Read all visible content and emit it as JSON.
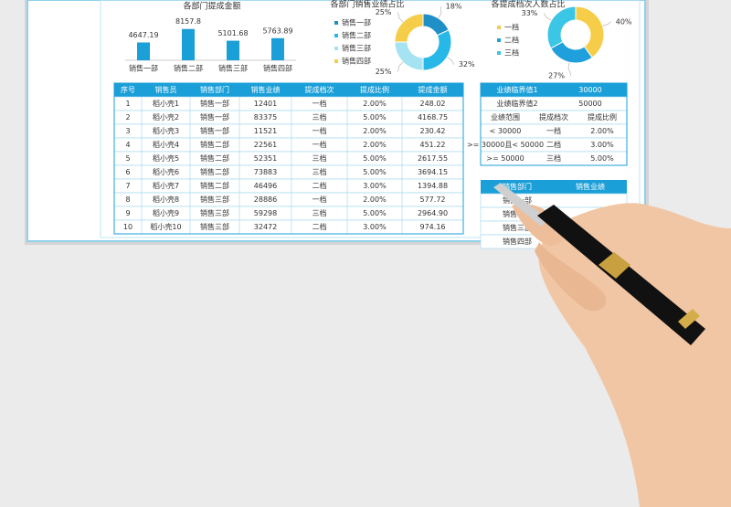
{
  "chart_data": [
    {
      "type": "bar",
      "title": "各部门提成金额",
      "categories": [
        "销售一部",
        "销售二部",
        "销售三部",
        "销售四部"
      ],
      "values": [
        4647.19,
        8157.8,
        5101.68,
        5763.89
      ],
      "color": "#1a9fd8"
    },
    {
      "type": "pie",
      "title": "各部门销售业绩占比",
      "categories": [
        "销售一部",
        "销售二部",
        "销售三部",
        "销售四部"
      ],
      "values": [
        18,
        32,
        25,
        25
      ],
      "value_labels": [
        "18%",
        "32%",
        "25%",
        "25%"
      ],
      "colors": [
        "#1f8fc8",
        "#28b8e8",
        "#a6e3f2",
        "#f6cd48"
      ]
    },
    {
      "type": "pie",
      "title": "各提成档次人数占比",
      "categories": [
        "一档",
        "二档",
        "三档"
      ],
      "values": [
        40,
        27,
        33
      ],
      "value_labels": [
        "40%",
        "27%",
        "33%"
      ],
      "colors": [
        "#f6cd48",
        "#1f9fdc",
        "#3cc6e6"
      ]
    }
  ],
  "table": {
    "header": [
      "序号",
      "销售员",
      "销售部门",
      "销售业绩",
      "提成档次",
      "提成比例",
      "提成金额"
    ],
    "rows": [
      [
        "1",
        "稻小壳1",
        "销售一部",
        "12401",
        "一档",
        "2.00%",
        "248.02"
      ],
      [
        "2",
        "稻小壳2",
        "销售一部",
        "83375",
        "三档",
        "5.00%",
        "4168.75"
      ],
      [
        "3",
        "稻小壳3",
        "销售一部",
        "11521",
        "一档",
        "2.00%",
        "230.42"
      ],
      [
        "4",
        "稻小壳4",
        "销售二部",
        "22561",
        "一档",
        "2.00%",
        "451.22"
      ],
      [
        "5",
        "稻小壳5",
        "销售二部",
        "52351",
        "三档",
        "5.00%",
        "2617.55"
      ],
      [
        "6",
        "稻小壳6",
        "销售二部",
        "73883",
        "三档",
        "5.00%",
        "3694.15"
      ],
      [
        "7",
        "稻小壳7",
        "销售二部",
        "46496",
        "二档",
        "3.00%",
        "1394.88"
      ],
      [
        "8",
        "稻小壳8",
        "销售三部",
        "28886",
        "一档",
        "2.00%",
        "577.72"
      ],
      [
        "9",
        "稻小壳9",
        "销售三部",
        "59298",
        "三档",
        "5.00%",
        "2964.90"
      ],
      [
        "10",
        "稻小壳10",
        "销售三部",
        "32472",
        "二档",
        "3.00%",
        "974.16"
      ]
    ]
  },
  "threshold_table": {
    "header": [
      "业绩临界值1",
      "30000"
    ],
    "row2": [
      "业绩临界值2",
      "50000"
    ],
    "rows": [
      [
        "业绩范围",
        "提成档次",
        "提成比例"
      ],
      [
        "< 30000",
        "一档",
        "2.00%"
      ],
      [
        ">= 30000且< 50000",
        "二档",
        "3.00%"
      ],
      [
        ">= 50000",
        "三档",
        "5.00%"
      ]
    ]
  },
  "dept_table": {
    "header": [
      "销售部门",
      "销售业绩"
    ],
    "rows": [
      "销售一部",
      "销售二部",
      "销售三部",
      "销售四部"
    ]
  }
}
